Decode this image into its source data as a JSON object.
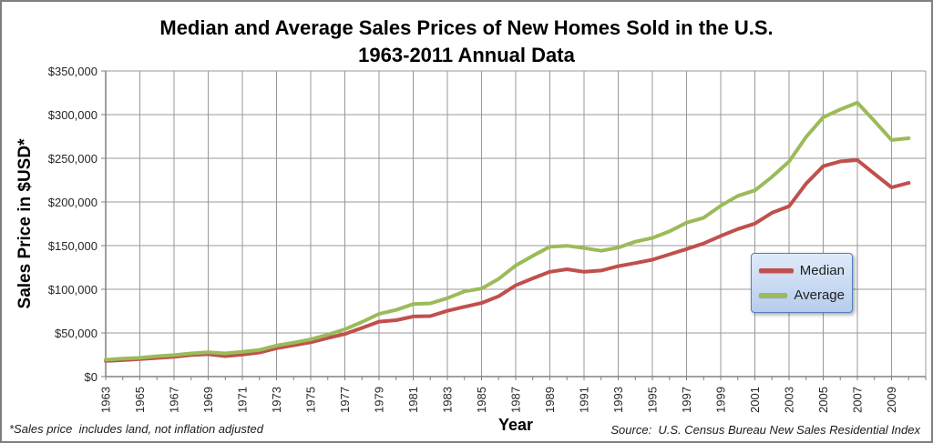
{
  "title": {
    "line1": "Median and Average Sales Prices of New Homes Sold in the U.S.",
    "line2": "1963-2011 Annual Data"
  },
  "y_axis": {
    "title": "Sales Price in $USD*"
  },
  "x_axis": {
    "title": "Year"
  },
  "footnote": "*Sales price  includes land, not inflation adjusted",
  "source": "Source:  U.S. Census Bureau New Sales Residential Index",
  "legend": {
    "items": [
      {
        "label": "Median",
        "color": "#C0504D"
      },
      {
        "label": "Average",
        "color": "#9BBB59"
      }
    ]
  },
  "colors": {
    "median": "#C0504D",
    "average": "#9BBB59",
    "gridline": "#999999",
    "axis": "#808080",
    "tick_text": "#262626"
  },
  "chart_data": {
    "type": "line",
    "title": "Median and Average Sales Prices of New Homes Sold in the U.S. 1963-2011 Annual Data",
    "xlabel": "Year",
    "ylabel": "Sales Price in $USD*",
    "grid": true,
    "legend_position": "right-middle",
    "xlim": [
      1963,
      2011
    ],
    "ylim": [
      0,
      350000
    ],
    "y_tick_step": 50000,
    "x_gridline_step": 2,
    "x_label_step": 2,
    "y_tick_labels": [
      "$0",
      "$50,000",
      "$100,000",
      "$150,000",
      "$200,000",
      "$250,000",
      "$300,000",
      "$350,000"
    ],
    "x_tick_labels": [
      "1963",
      "1965",
      "1967",
      "1969",
      "1971",
      "1973",
      "1975",
      "1977",
      "1979",
      "1981",
      "1983",
      "1985",
      "1987",
      "1989",
      "1991",
      "1993",
      "1995",
      "1997",
      "1999",
      "2001",
      "2003",
      "2005",
      "2007",
      "2009"
    ],
    "x": [
      1963,
      1964,
      1965,
      1966,
      1967,
      1968,
      1969,
      1970,
      1971,
      1972,
      1973,
      1974,
      1975,
      1976,
      1977,
      1978,
      1979,
      1980,
      1981,
      1982,
      1983,
      1984,
      1985,
      1986,
      1987,
      1988,
      1989,
      1990,
      1991,
      1992,
      1993,
      1994,
      1995,
      1996,
      1997,
      1998,
      1999,
      2000,
      2001,
      2002,
      2003,
      2004,
      2005,
      2006,
      2007,
      2008,
      2009,
      2010
    ],
    "series": [
      {
        "name": "Median",
        "color": "#C0504D",
        "values": [
          18000,
          18900,
          20000,
          21400,
          22700,
          24700,
          25600,
          23400,
          25200,
          27600,
          32500,
          35900,
          39300,
          44200,
          48800,
          55700,
          62900,
          64600,
          68900,
          69300,
          75300,
          79900,
          84300,
          92000,
          104500,
          112500,
          120000,
          122900,
          120000,
          121500,
          126500,
          130000,
          133900,
          140000,
          146000,
          152500,
          161000,
          169000,
          175200,
          187600,
          195000,
          221000,
          240900,
          246500,
          247900,
          232100,
          216700,
          221800
        ]
      },
      {
        "name": "Average",
        "color": "#9BBB59",
        "values": [
          19300,
          20500,
          21500,
          23300,
          24600,
          26600,
          27900,
          26600,
          28300,
          30500,
          35500,
          38900,
          42600,
          48000,
          54200,
          62500,
          71800,
          76400,
          83000,
          83900,
          89800,
          97600,
          100800,
          111900,
          127200,
          138300,
          148800,
          149800,
          147200,
          144100,
          147700,
          154500,
          158700,
          166400,
          176200,
          181900,
          195600,
          207000,
          213200,
          228700,
          246300,
          274500,
          297000,
          305900,
          313600,
          292600,
          270900,
          272900
        ]
      }
    ]
  }
}
